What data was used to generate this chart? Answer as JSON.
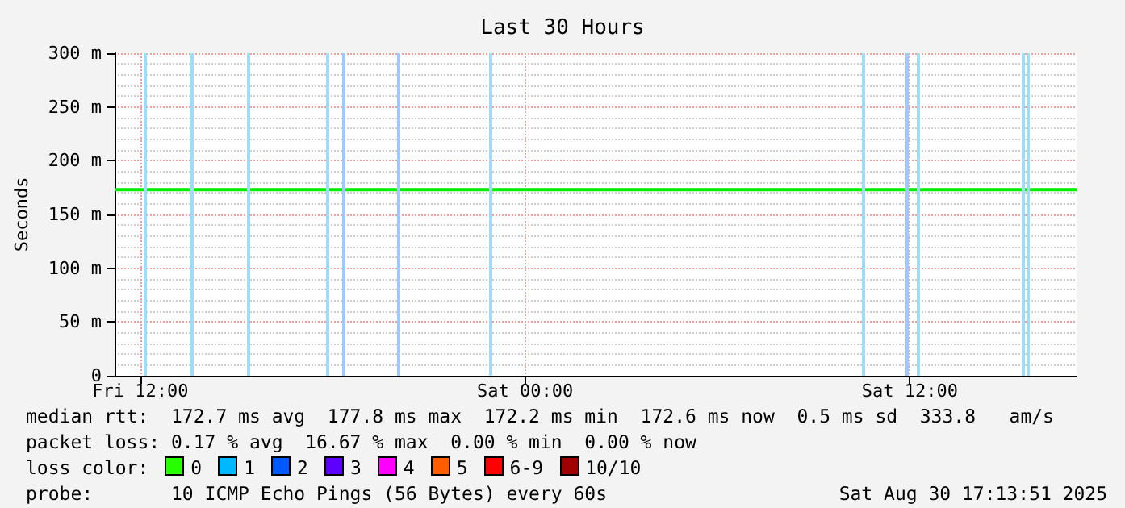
{
  "chart_data": {
    "type": "line",
    "title": "Last 30 Hours",
    "ylabel": "Seconds",
    "x": [
      "2025-08-29T11:12",
      "2025-08-29T12:00",
      "2025-08-29T13:00",
      "2025-08-29T14:00",
      "2025-08-29T15:00",
      "2025-08-29T16:00",
      "2025-08-29T17:00",
      "2025-08-29T18:00",
      "2025-08-29T19:00",
      "2025-08-29T20:00",
      "2025-08-29T21:00",
      "2025-08-29T22:00",
      "2025-08-29T23:00",
      "2025-08-30T00:00",
      "2025-08-30T01:00",
      "2025-08-30T02:00",
      "2025-08-30T03:00",
      "2025-08-30T04:00",
      "2025-08-30T05:00",
      "2025-08-30T06:00",
      "2025-08-30T07:00",
      "2025-08-30T08:00",
      "2025-08-30T09:00",
      "2025-08-30T10:00",
      "2025-08-30T11:00",
      "2025-08-30T12:00",
      "2025-08-30T13:00",
      "2025-08-30T14:00",
      "2025-08-30T15:00",
      "2025-08-30T16:00",
      "2025-08-30T17:12"
    ],
    "series": [
      {
        "color": "#00ee00",
        "values": [
          173,
          173,
          173,
          173,
          173,
          173,
          173,
          173,
          173,
          173,
          173,
          173,
          173,
          173,
          173,
          173,
          173,
          173,
          173,
          173,
          173,
          173,
          173,
          173,
          173,
          173,
          173,
          173,
          173,
          173,
          173
        ]
      }
    ],
    "xlim": [
      "2025-08-29T11:12",
      "2025-08-30T17:12"
    ],
    "xticks": [
      {
        "value": "2025-08-29T12:00",
        "label": "Fri 12:00"
      },
      {
        "value": "2025-08-30T00:00",
        "label": "Sat 00:00"
      },
      {
        "value": "2025-08-30T12:00",
        "label": "Sat 12:00"
      }
    ],
    "ylim": [
      0,
      300
    ],
    "yticks": [
      0,
      {
        "value": 50,
        "label": "50 m"
      },
      {
        "value": 100,
        "label": "100 m"
      },
      {
        "value": 150,
        "label": "150 m"
      },
      {
        "value": 200,
        "label": "200 m"
      },
      {
        "value": 250,
        "label": "250 m"
      },
      {
        "value": 300,
        "label": "300 m"
      }
    ],
    "ref_lines": [
      {
        "axis": "x",
        "value": "2025-08-29T12:09",
        "color": "#a0dcf8"
      },
      {
        "axis": "x",
        "value": "2025-08-29T13:36",
        "color": "#a0dcf8"
      },
      {
        "axis": "x",
        "value": "2025-08-29T15:21",
        "color": "#a0dcf8"
      },
      {
        "axis": "x",
        "value": "2025-08-29T17:51",
        "color": "#a0dcf8"
      },
      {
        "axis": "x",
        "value": "2025-08-29T18:21",
        "color": "#a0c8fa"
      },
      {
        "axis": "x",
        "value": "2025-08-29T20:03",
        "color": "#a0c8fa"
      },
      {
        "axis": "x",
        "value": "2025-08-29T22:54",
        "color": "#a0dcf8"
      },
      {
        "axis": "x",
        "value": "2025-08-30T10:33",
        "color": "#a0dcf8"
      },
      {
        "axis": "x",
        "value": "2025-08-30T11:54",
        "color": "#a0c8fa"
      },
      {
        "axis": "x",
        "value": "2025-08-30T12:15",
        "color": "#a0dcf8"
      },
      {
        "axis": "x",
        "value": "2025-08-30T15:33",
        "color": "#a0dcf8"
      },
      {
        "axis": "x",
        "value": "2025-08-30T15:42",
        "color": "#a0dcf8"
      }
    ],
    "grid": true,
    "marker": "none",
    "line_style": "solid",
    "annotations": [
      "median rtt:  172.7 ms avg  177.8 ms max  172.2 ms min  172.6 ms now  0.5 ms sd  333.8   am/s",
      "packet loss: 0.17 % avg  16.67 % max  0.00 % min  0.00 % now",
      "loss color:",
      "0",
      "1",
      "2",
      "3",
      "4",
      "5",
      "6-9",
      "10/10",
      "probe:       10 ICMP Echo Pings (56 Bytes) every 60s",
      "Sat Aug 30 17:13:51 2025"
    ]
  }
}
